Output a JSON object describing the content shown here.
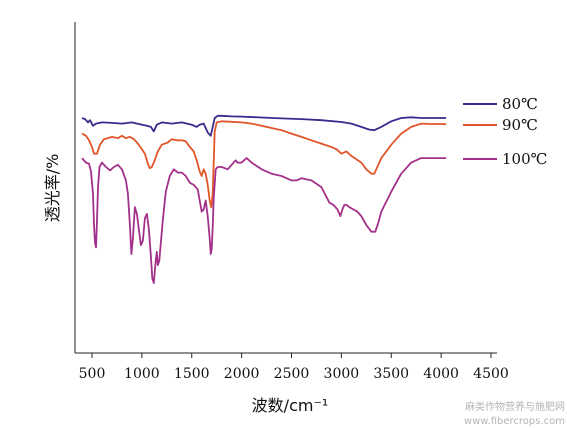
{
  "chart_data": {
    "type": "line",
    "title": "",
    "xlabel": "波数/cm⁻¹",
    "ylabel": "透光率/%",
    "xlim": [
      350,
      4500
    ],
    "ylim": [
      0,
      100
    ],
    "xticks": [
      "500",
      "1000",
      "1500",
      "2000",
      "2500",
      "3000",
      "3500",
      "4000",
      "4500"
    ],
    "xtick_values": [
      500,
      1000,
      1500,
      2000,
      2500,
      3000,
      3500,
      4000,
      4500
    ],
    "y_ticks_shown": false,
    "grid": false,
    "legend_position": "right",
    "series": [
      {
        "name": "80℃",
        "color": "#3a2a8c",
        "points": [
          [
            400,
            74
          ],
          [
            430,
            73.5
          ],
          [
            460,
            72
          ],
          [
            480,
            73
          ],
          [
            510,
            70.5
          ],
          [
            540,
            71.5
          ],
          [
            600,
            72
          ],
          [
            700,
            71.8
          ],
          [
            800,
            71.5
          ],
          [
            900,
            72
          ],
          [
            1000,
            71
          ],
          [
            1050,
            70.5
          ],
          [
            1090,
            70
          ],
          [
            1120,
            68
          ],
          [
            1150,
            71
          ],
          [
            1200,
            72
          ],
          [
            1300,
            71.5
          ],
          [
            1400,
            72
          ],
          [
            1500,
            71
          ],
          [
            1550,
            70
          ],
          [
            1580,
            71
          ],
          [
            1620,
            71.5
          ],
          [
            1660,
            67.5
          ],
          [
            1690,
            66
          ],
          [
            1710,
            70
          ],
          [
            1730,
            74
          ],
          [
            1760,
            75
          ],
          [
            1800,
            75
          ],
          [
            1900,
            74.7
          ],
          [
            2000,
            74.6
          ],
          [
            2200,
            74.2
          ],
          [
            2400,
            73.8
          ],
          [
            2600,
            73.5
          ],
          [
            2800,
            73
          ],
          [
            3000,
            72.2
          ],
          [
            3100,
            71.5
          ],
          [
            3200,
            70
          ],
          [
            3280,
            68.8
          ],
          [
            3330,
            68.5
          ],
          [
            3400,
            70
          ],
          [
            3500,
            72.5
          ],
          [
            3600,
            74
          ],
          [
            3700,
            74.3
          ],
          [
            3800,
            74
          ],
          [
            3900,
            74
          ],
          [
            4000,
            74
          ],
          [
            4050,
            74
          ]
        ]
      },
      {
        "name": "90℃",
        "color": "#e0562a",
        "points": [
          [
            400,
            67
          ],
          [
            440,
            66
          ],
          [
            470,
            64
          ],
          [
            500,
            61
          ],
          [
            520,
            58
          ],
          [
            550,
            58
          ],
          [
            580,
            62
          ],
          [
            620,
            64.5
          ],
          [
            700,
            65.5
          ],
          [
            760,
            65
          ],
          [
            800,
            66
          ],
          [
            840,
            65
          ],
          [
            880,
            65.5
          ],
          [
            920,
            64.5
          ],
          [
            960,
            62.5
          ],
          [
            1000,
            60
          ],
          [
            1030,
            58
          ],
          [
            1060,
            53.5
          ],
          [
            1080,
            51.5
          ],
          [
            1100,
            52
          ],
          [
            1130,
            55
          ],
          [
            1160,
            59
          ],
          [
            1200,
            62
          ],
          [
            1260,
            63
          ],
          [
            1300,
            64.5
          ],
          [
            1350,
            64
          ],
          [
            1400,
            64
          ],
          [
            1440,
            63.5
          ],
          [
            1480,
            61
          ],
          [
            1520,
            59
          ],
          [
            1550,
            55
          ],
          [
            1580,
            50
          ],
          [
            1600,
            48
          ],
          [
            1620,
            51
          ],
          [
            1640,
            49
          ],
          [
            1660,
            44
          ],
          [
            1680,
            37
          ],
          [
            1695,
            34
          ],
          [
            1710,
            40
          ],
          [
            1730,
            68
          ],
          [
            1750,
            72
          ],
          [
            1800,
            72.5
          ],
          [
            1900,
            72.3
          ],
          [
            2000,
            72
          ],
          [
            2100,
            71.5
          ],
          [
            2200,
            70.5
          ],
          [
            2300,
            69.5
          ],
          [
            2400,
            68.5
          ],
          [
            2500,
            67
          ],
          [
            2600,
            65.5
          ],
          [
            2700,
            64
          ],
          [
            2800,
            62.5
          ],
          [
            2900,
            61
          ],
          [
            2950,
            60
          ],
          [
            3000,
            58
          ],
          [
            3050,
            59
          ],
          [
            3100,
            57
          ],
          [
            3200,
            54
          ],
          [
            3250,
            51
          ],
          [
            3300,
            49
          ],
          [
            3330,
            49
          ],
          [
            3360,
            52
          ],
          [
            3400,
            56
          ],
          [
            3500,
            62
          ],
          [
            3600,
            67
          ],
          [
            3700,
            70
          ],
          [
            3800,
            71.5
          ],
          [
            3900,
            71.3
          ],
          [
            4000,
            71.3
          ],
          [
            4050,
            71.2
          ]
        ]
      },
      {
        "name": "100℃",
        "color": "#a3308a",
        "points": [
          [
            400,
            56
          ],
          [
            440,
            54
          ],
          [
            470,
            53.5
          ],
          [
            490,
            50
          ],
          [
            510,
            40
          ],
          [
            520,
            26
          ],
          [
            530,
            18
          ],
          [
            540,
            16
          ],
          [
            550,
            28
          ],
          [
            560,
            43
          ],
          [
            575,
            52
          ],
          [
            600,
            54
          ],
          [
            640,
            52
          ],
          [
            680,
            50.5
          ],
          [
            720,
            52
          ],
          [
            760,
            53
          ],
          [
            800,
            51
          ],
          [
            840,
            46
          ],
          [
            860,
            40
          ],
          [
            880,
            26
          ],
          [
            895,
            13
          ],
          [
            910,
            20
          ],
          [
            930,
            34
          ],
          [
            950,
            31
          ],
          [
            970,
            24
          ],
          [
            990,
            17
          ],
          [
            1010,
            19
          ],
          [
            1030,
            29
          ],
          [
            1050,
            31
          ],
          [
            1070,
            24
          ],
          [
            1090,
            12
          ],
          [
            1105,
            2
          ],
          [
            1120,
            0
          ],
          [
            1135,
            8
          ],
          [
            1150,
            14
          ],
          [
            1160,
            8
          ],
          [
            1175,
            10
          ],
          [
            1190,
            18
          ],
          [
            1210,
            28
          ],
          [
            1240,
            41
          ],
          [
            1280,
            48
          ],
          [
            1320,
            51
          ],
          [
            1360,
            49.5
          ],
          [
            1400,
            49.5
          ],
          [
            1440,
            48
          ],
          [
            1480,
            45
          ],
          [
            1520,
            44
          ],
          [
            1560,
            42
          ],
          [
            1580,
            37
          ],
          [
            1600,
            32
          ],
          [
            1620,
            33
          ],
          [
            1640,
            37
          ],
          [
            1660,
            30
          ],
          [
            1680,
            20
          ],
          [
            1690,
            13
          ],
          [
            1700,
            15
          ],
          [
            1710,
            25
          ],
          [
            1720,
            38
          ],
          [
            1740,
            51
          ],
          [
            1760,
            52
          ],
          [
            1800,
            52
          ],
          [
            1860,
            51
          ],
          [
            1940,
            55
          ],
          [
            1960,
            54
          ],
          [
            2000,
            54
          ],
          [
            2050,
            56
          ],
          [
            2100,
            54
          ],
          [
            2200,
            51
          ],
          [
            2300,
            49
          ],
          [
            2400,
            48
          ],
          [
            2450,
            47
          ],
          [
            2500,
            46
          ],
          [
            2550,
            46
          ],
          [
            2600,
            47
          ],
          [
            2700,
            46
          ],
          [
            2800,
            43
          ],
          [
            2880,
            36
          ],
          [
            2920,
            35
          ],
          [
            2960,
            33
          ],
          [
            2990,
            30
          ],
          [
            3010,
            33
          ],
          [
            3030,
            35
          ],
          [
            3050,
            35
          ],
          [
            3080,
            34
          ],
          [
            3120,
            33
          ],
          [
            3160,
            32
          ],
          [
            3200,
            30
          ],
          [
            3250,
            26
          ],
          [
            3300,
            23
          ],
          [
            3340,
            23
          ],
          [
            3370,
            27
          ],
          [
            3400,
            32
          ],
          [
            3500,
            41
          ],
          [
            3600,
            49
          ],
          [
            3700,
            54
          ],
          [
            3800,
            56
          ],
          [
            3900,
            56
          ],
          [
            4000,
            56
          ],
          [
            4050,
            56
          ]
        ]
      }
    ]
  },
  "watermark": "麻类作物营养与施肥网\nwww.fibercrops.com"
}
